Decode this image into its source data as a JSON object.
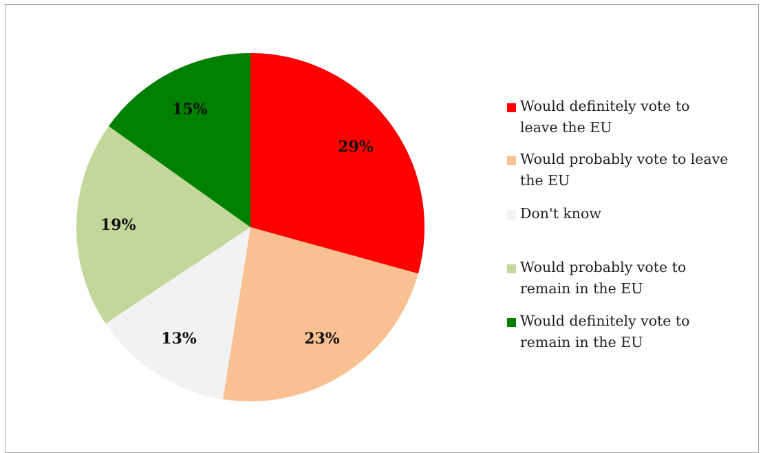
{
  "chart_data": {
    "type": "pie",
    "title": "",
    "slices": [
      {
        "label": "Would definitely vote to leave the EU",
        "value": 29,
        "display": "29%",
        "color": "#ff0000"
      },
      {
        "label": "Would probably vote to leave the EU",
        "value": 23,
        "display": "23%",
        "color": "#f9c191"
      },
      {
        "label": "Don't know",
        "value": 13,
        "display": "13%",
        "color": "#f2f2f2"
      },
      {
        "label": "Would probably vote to remain in the EU",
        "value": 19,
        "display": "19%",
        "color": "#c4d79b"
      },
      {
        "label": "Would definitely vote to remain in the EU",
        "value": 15,
        "display": "15%",
        "color": "#008000"
      }
    ],
    "legend_position": "right",
    "start_angle": "12 o'clock",
    "direction": "clockwise"
  },
  "legend": {
    "items": [
      {
        "line1": "Would definitely vote to",
        "line2": "leave the EU"
      },
      {
        "line1": "Would probably vote to leave",
        "line2": "the EU"
      },
      {
        "line1": "Don't know",
        "line2": ""
      },
      {
        "line1": "Would probably vote to",
        "line2": "remain in the EU"
      },
      {
        "line1": "Would definitely vote to",
        "line2": "remain in the EU"
      }
    ]
  }
}
